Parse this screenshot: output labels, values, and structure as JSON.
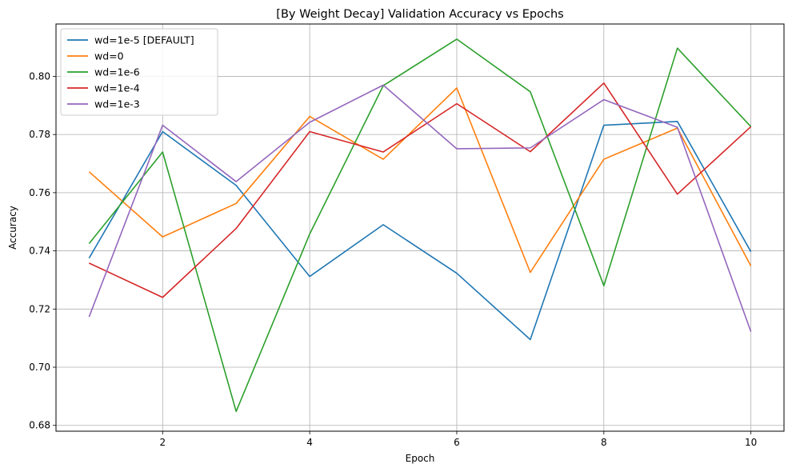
{
  "chart_data": {
    "type": "line",
    "title": "[By Weight Decay] Validation Accuracy vs Epochs",
    "xlabel": "Epoch",
    "ylabel": "Accuracy",
    "xlim": [
      0.55,
      10.45
    ],
    "ylim": [
      0.678,
      0.818
    ],
    "xticks": [
      2,
      4,
      6,
      8,
      10
    ],
    "yticks": [
      0.68,
      0.7,
      0.72,
      0.74,
      0.76,
      0.78,
      0.8
    ],
    "grid": true,
    "legend_position": "top-left",
    "x": [
      1,
      2,
      3,
      4,
      5,
      6,
      7,
      8,
      9,
      10
    ],
    "series": [
      {
        "name": "wd=1e-5 [DEFAULT]",
        "color": "#1f77b4",
        "values": [
          0.7375,
          0.781,
          0.7625,
          0.7312,
          0.749,
          0.7323,
          0.7095,
          0.7832,
          0.7845,
          0.7397
        ]
      },
      {
        "name": "wd=0",
        "color": "#ff7f0e",
        "values": [
          0.7672,
          0.7448,
          0.7563,
          0.7862,
          0.7715,
          0.796,
          0.7326,
          0.7715,
          0.7822,
          0.7348
        ]
      },
      {
        "name": "wd=1e-6",
        "color": "#2ca02c",
        "values": [
          0.7425,
          0.774,
          0.6848,
          0.7458,
          0.7968,
          0.8128,
          0.7947,
          0.728,
          0.8097,
          0.7827
        ]
      },
      {
        "name": "wd=1e-4",
        "color": "#d62728",
        "values": [
          0.7358,
          0.724,
          0.7477,
          0.781,
          0.774,
          0.7906,
          0.7741,
          0.7977,
          0.7595,
          0.7827
        ]
      },
      {
        "name": "wd=1e-3",
        "color": "#9467bd",
        "values": [
          0.7173,
          0.7832,
          0.7638,
          0.7842,
          0.797,
          0.7751,
          0.7754,
          0.792,
          0.7825,
          0.7122
        ]
      }
    ]
  }
}
